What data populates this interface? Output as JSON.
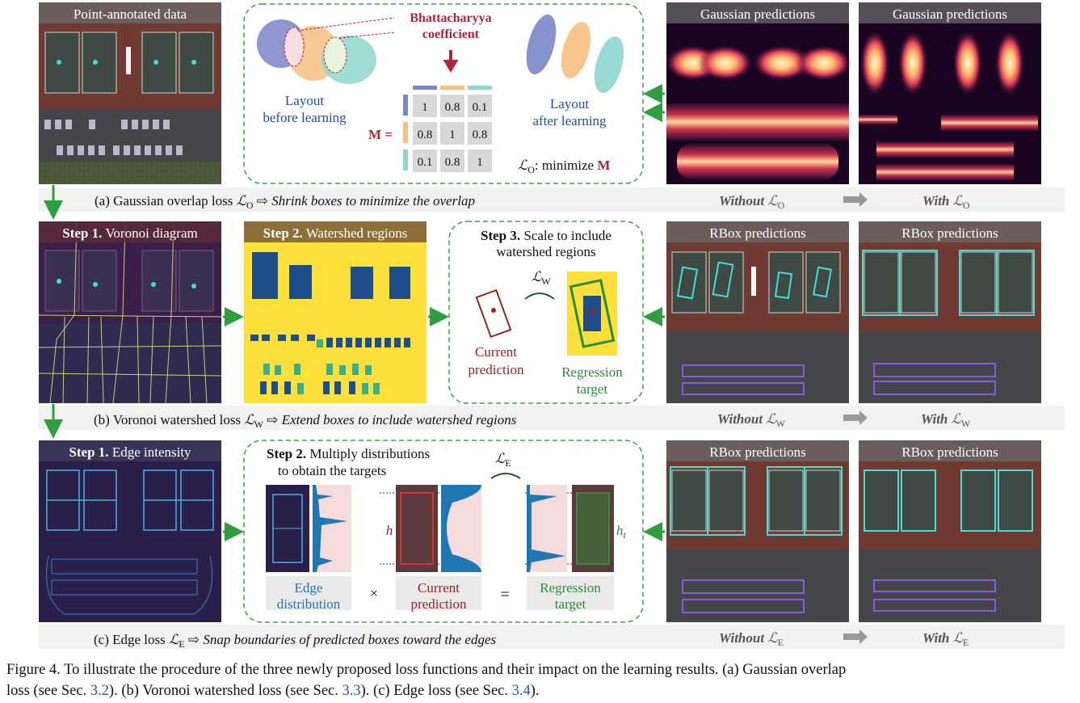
{
  "panels": {
    "point_annotated": "Point-annotated data",
    "gaussian_pred": "Gaussian predictions",
    "rbox_pred": "RBox predictions",
    "step1_voronoi_bold": "Step 1.",
    "step1_voronoi_rest": " Voronoi diagram",
    "step2_watershed_bold": "Step 2.",
    "step2_watershed_rest": " Watershed regions",
    "step1_edge_bold": "Step 1.",
    "step1_edge_rest": " Edge intensity"
  },
  "row_a": {
    "bhatta_line1": "Bhattacharyya",
    "bhatta_line2": "coefficient",
    "layout_before_1": "Layout",
    "layout_before_2": "before learning",
    "layout_after_1": "Layout",
    "layout_after_2": "after learning",
    "matrix_label": "M =",
    "matrix": [
      [
        "1",
        "0.8",
        "0.1"
      ],
      [
        "0.8",
        "1",
        "0.8"
      ],
      [
        "0.1",
        "0.8",
        "1"
      ]
    ],
    "minimize_text": ": minimize ",
    "minimize_bold": "M",
    "loss_symbol": "ℒ",
    "loss_sub": "O",
    "caption_pre": "(a) Gaussian overlap loss ",
    "caption_arrow": " ⇨ ",
    "caption_italic": "Shrink boxes to minimize the overlap",
    "without": "Without ",
    "with": "With "
  },
  "row_b": {
    "step3_bold": "Step 3.",
    "step3_line1_rest": " Scale to include",
    "step3_line2": "watershed regions",
    "current_1": "Current",
    "current_2": "prediction",
    "regression_1": "Regression",
    "regression_2": "target",
    "loss_symbol": "ℒ",
    "loss_sub": "W",
    "caption_pre": "(b) Voronoi watershed loss ",
    "caption_arrow": " ⇨ ",
    "caption_italic": "Extend boxes to include watershed regions",
    "without": "Without ",
    "with": "With "
  },
  "row_c": {
    "step2_bold": "Step 2.",
    "step2_line1_rest": " Multiply distributions",
    "step2_line2": "to obtain the targets",
    "edge_1": "Edge",
    "edge_2": "distribution",
    "times": "×",
    "equals": "=",
    "current_1": "Current",
    "current_2": "prediction",
    "regression_1": "Regression",
    "regression_2": "target",
    "h": "h",
    "ht_main": "h",
    "ht_sub": "t",
    "loss_symbol": "ℒ",
    "loss_sub": "E",
    "caption_pre": "(c) Edge loss ",
    "caption_arrow": " ⇨ ",
    "caption_italic": "Snap boundaries of  predicted boxes toward the edges",
    "without": "Without ",
    "with": "With "
  },
  "figure_caption": {
    "line1": "Figure 4. To illustrate the procedure of the three newly proposed loss functions and their impact on the learning results. (a) Gaussian overlap",
    "line2_a": "loss (see Sec. ",
    "ref1": "3.2",
    "line2_b": "). (b) Voronoi watershed loss (see Sec. ",
    "ref2": "3.3",
    "line2_c": "). (c) Edge loss (see Sec. ",
    "ref3": "3.4",
    "line2_d": ")."
  },
  "colors": {
    "green_arrow": "#2e9e3e",
    "dashed_green": "#3aa04a",
    "bhatta_red": "#b0243c",
    "edge_blue": "#1f77b4",
    "current_red": "#a01f1f",
    "regression_green": "#2a8a3a",
    "link_blue": "#2a56b0",
    "blue_ellipse": "#7b86c6",
    "orange_ellipse": "#f5bf80",
    "teal_ellipse": "#8fd6cf"
  }
}
